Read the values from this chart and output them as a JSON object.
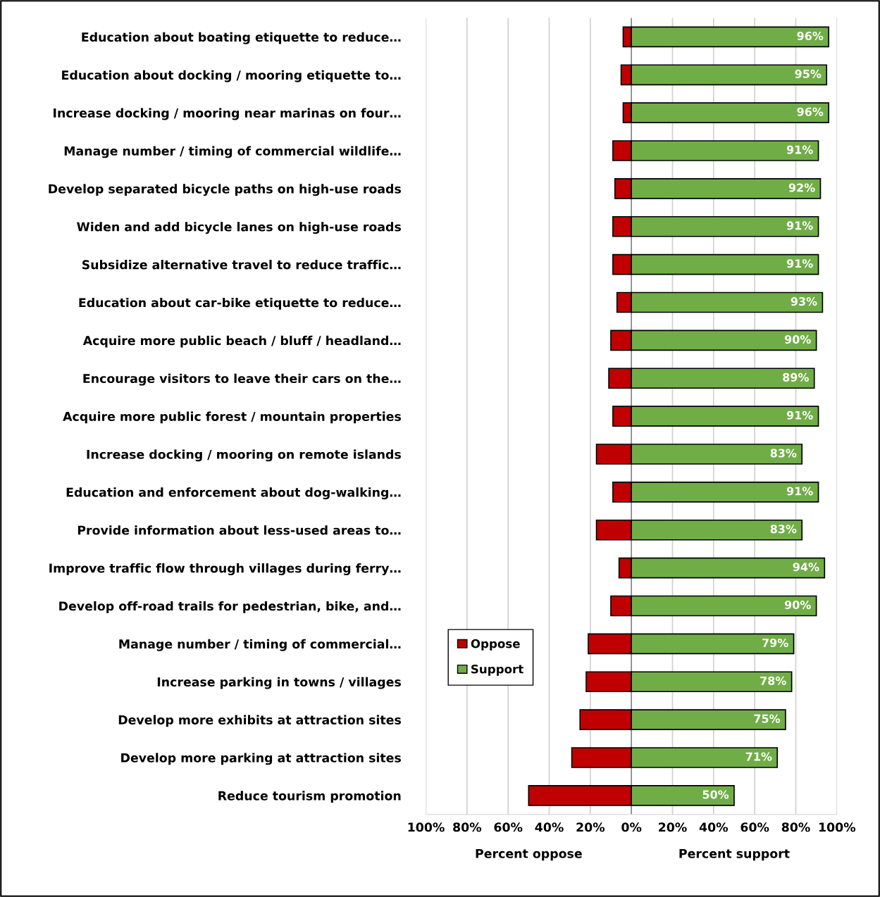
{
  "chart_data": {
    "type": "bar",
    "orientation": "horizontal",
    "stacked": true,
    "categories": [
      "Education about boating etiquette to reduce…",
      "Education about docking / mooring etiquette to…",
      "Increase docking / mooring near marinas on four…",
      "Manage number / timing of commercial wildlife…",
      "Develop separated bicycle paths on high-use roads",
      "Widen and add bicycle lanes on high-use roads",
      "Subsidize alternative travel to reduce traffic…",
      "Education about car-bike etiquette to reduce…",
      "Acquire more public beach / bluff / headland…",
      "Encourage visitors to leave their cars on the…",
      "Acquire more public forest / mountain properties",
      "Increase docking / mooring on remote islands",
      "Education and enforcement about dog-walking…",
      "Provide information about less-used areas to…",
      "Improve traffic flow through villages during ferry…",
      "Develop off-road trails for pedestrian, bike, and…",
      "Manage number / timing of commercial…",
      "Increase parking in towns / villages",
      "Develop more exhibits at attraction sites",
      "Develop more parking at attraction sites",
      "Reduce tourism promotion"
    ],
    "series": [
      {
        "name": "Oppose",
        "color": "#c00000",
        "values": [
          -4,
          -5,
          -4,
          -9,
          -8,
          -9,
          -9,
          -7,
          -10,
          -11,
          -9,
          -17,
          -9,
          -17,
          -6,
          -10,
          -21,
          -22,
          -25,
          -29,
          -50
        ]
      },
      {
        "name": "Support",
        "color": "#70ad47",
        "values": [
          96,
          95,
          96,
          91,
          92,
          91,
          91,
          93,
          90,
          89,
          91,
          83,
          91,
          83,
          94,
          90,
          79,
          78,
          75,
          71,
          50
        ],
        "value_labels": [
          "96%",
          "95%",
          "96%",
          "91%",
          "92%",
          "91%",
          "91%",
          "93%",
          "90%",
          "89%",
          "91%",
          "83%",
          "91%",
          "83%",
          "94%",
          "90%",
          "79%",
          "78%",
          "75%",
          "71%",
          "50%"
        ]
      }
    ],
    "xlim": [
      -100,
      100
    ],
    "xticks": [
      {
        "value": -100,
        "label": "100%"
      },
      {
        "value": -80,
        "label": "80%"
      },
      {
        "value": -60,
        "label": "60%"
      },
      {
        "value": -40,
        "label": "40%"
      },
      {
        "value": -20,
        "label": "20%"
      },
      {
        "value": 0,
        "label": "0%"
      },
      {
        "value": 20,
        "label": "20%"
      },
      {
        "value": 40,
        "label": "40%"
      },
      {
        "value": 60,
        "label": "60%"
      },
      {
        "value": 80,
        "label": "80%"
      },
      {
        "value": 100,
        "label": "100%"
      }
    ],
    "grid": "x",
    "legend": "lower left",
    "annotations": [
      "Percent oppose",
      "Percent support"
    ]
  }
}
